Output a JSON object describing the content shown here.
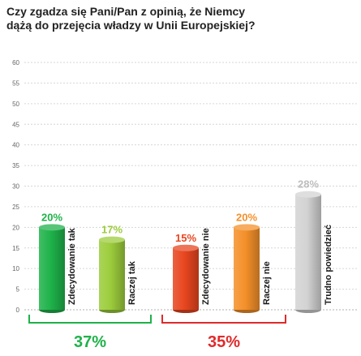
{
  "chart_data": {
    "type": "bar",
    "title_lines": [
      "Czy zgadza się Pani/Pan z opinią, że Niemcy",
      "dążą do przejęcia władzy w Unii Europejskiej?"
    ],
    "categories": [
      "Zdecydowanie tak",
      "Raczej tak",
      "Zdecydowanie nie",
      "Raczej nie",
      "Trudno powiedzieć"
    ],
    "values": [
      20,
      17,
      15,
      20,
      28
    ],
    "value_labels": [
      "20%",
      "17%",
      "15%",
      "20%",
      "28%"
    ],
    "colors": [
      "#1fb24a",
      "#9ccc3c",
      "#e8461f",
      "#f4902a",
      "#d3d3d3"
    ],
    "ylim": [
      0,
      60
    ],
    "yticks": [
      0,
      5,
      10,
      15,
      20,
      25,
      30,
      35,
      40,
      45,
      50,
      55,
      60
    ],
    "grid": true,
    "groups": [
      {
        "label": "37%",
        "color": "#1fb24a",
        "members": [
          0,
          1
        ]
      },
      {
        "label": "35%",
        "color": "#e02a2a",
        "members": [
          2,
          3
        ]
      }
    ]
  }
}
